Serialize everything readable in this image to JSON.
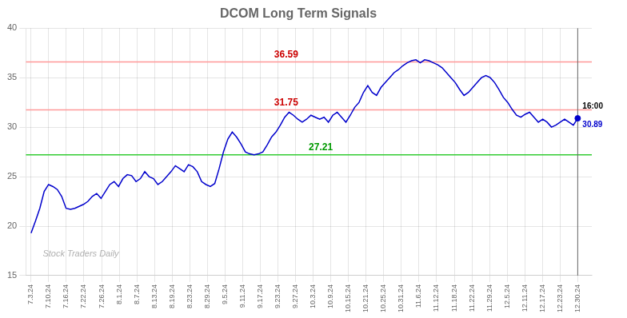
{
  "chart_data": {
    "type": "line",
    "title": "DCOM Long Term Signals",
    "color": "#0000cc",
    "x": [
      0,
      0.248,
      0.496,
      0.744,
      0.992,
      1.24,
      1.488,
      1.736,
      1.984,
      2.232,
      2.48,
      2.728,
      2.976,
      3.224,
      3.472,
      3.72,
      3.968,
      4.216,
      4.464,
      4.712,
      4.96,
      5.208,
      5.456,
      5.704,
      5.952,
      6.2,
      6.448,
      6.696,
      6.944,
      7.192,
      7.44,
      7.688,
      7.936,
      8.184,
      8.432,
      8.68,
      8.928,
      9.176,
      9.424,
      9.672,
      9.92,
      10.168,
      10.416,
      10.664,
      10.912,
      11.16,
      11.408,
      11.656,
      11.904,
      12.152,
      12.4,
      12.648,
      12.896,
      13.144,
      13.392,
      13.64,
      13.888,
      14.136,
      14.384,
      14.632,
      14.88,
      15.128,
      15.376,
      15.624,
      15.872,
      16.12,
      16.368,
      16.616,
      16.864,
      17.112,
      17.36,
      17.608,
      17.856,
      18.104,
      18.352,
      18.6,
      18.848,
      19.096,
      19.344,
      19.592,
      19.84,
      20.088,
      20.336,
      20.584,
      20.832,
      21.08,
      21.328,
      21.576,
      21.824,
      22.072,
      22.32,
      22.568,
      22.816,
      23.064,
      23.312,
      23.56,
      23.808,
      24.056,
      24.304,
      24.552,
      24.8,
      25.048,
      25.296,
      25.544,
      25.792,
      26.04,
      26.288,
      26.536,
      26.784,
      27.032,
      27.28,
      27.528,
      27.776,
      28.024,
      28.272,
      28.52,
      28.768,
      29.016,
      29.264,
      29.512,
      29.76,
      30.008,
      30.256,
      30.504,
      30.752,
      31
    ],
    "values": [
      19.3,
      20.5,
      21.8,
      23.5,
      24.2,
      24.0,
      23.7,
      23.0,
      21.8,
      21.7,
      21.8,
      22.0,
      22.2,
      22.5,
      23.0,
      23.3,
      22.8,
      23.5,
      24.2,
      24.5,
      24.0,
      24.8,
      25.2,
      25.1,
      24.5,
      24.8,
      25.5,
      25.0,
      24.8,
      24.2,
      24.5,
      25.0,
      25.5,
      26.1,
      25.8,
      25.5,
      26.2,
      26.0,
      25.5,
      24.5,
      24.2,
      24.0,
      24.3,
      25.8,
      27.5,
      28.8,
      29.5,
      29.0,
      28.3,
      27.5,
      27.3,
      27.2,
      27.3,
      27.5,
      28.2,
      29.0,
      29.5,
      30.2,
      31.0,
      31.5,
      31.2,
      30.8,
      30.5,
      30.8,
      31.2,
      31.0,
      30.8,
      31.0,
      30.5,
      31.2,
      31.5,
      31.0,
      30.5,
      31.2,
      32.0,
      32.5,
      33.5,
      34.2,
      33.5,
      33.2,
      34.0,
      34.5,
      35.0,
      35.5,
      35.8,
      36.2,
      36.5,
      36.7,
      36.8,
      36.5,
      36.8,
      36.7,
      36.5,
      36.3,
      36.0,
      35.5,
      35.0,
      34.5,
      33.8,
      33.2,
      33.5,
      34.0,
      34.5,
      35.0,
      35.2,
      35.0,
      34.5,
      33.8,
      33.0,
      32.5,
      31.8,
      31.2,
      31.0,
      31.3,
      31.5,
      31.0,
      30.5,
      30.8,
      30.5,
      30.0,
      30.2,
      30.5,
      30.8,
      30.5,
      30.2,
      30.89
    ],
    "xlim": [
      -0.3,
      31.8
    ],
    "xticks": [
      {
        "value": 0,
        "label": "7.3.24"
      },
      {
        "value": 1,
        "label": "7.10.24"
      },
      {
        "value": 2,
        "label": "7.16.24"
      },
      {
        "value": 3,
        "label": "7.22.24"
      },
      {
        "value": 4,
        "label": "7.26.24"
      },
      {
        "value": 5,
        "label": "8.1.24"
      },
      {
        "value": 6,
        "label": "8.7.24"
      },
      {
        "value": 7,
        "label": "8.13.24"
      },
      {
        "value": 8,
        "label": "8.19.24"
      },
      {
        "value": 9,
        "label": "8.23.24"
      },
      {
        "value": 10,
        "label": "8.29.24"
      },
      {
        "value": 11,
        "label": "9.5.24"
      },
      {
        "value": 12,
        "label": "9.11.24"
      },
      {
        "value": 13,
        "label": "9.17.24"
      },
      {
        "value": 14,
        "label": "9.23.24"
      },
      {
        "value": 15,
        "label": "9.27.24"
      },
      {
        "value": 16,
        "label": "10.3.24"
      },
      {
        "value": 17,
        "label": "10.9.24"
      },
      {
        "value": 18,
        "label": "10.15.24"
      },
      {
        "value": 19,
        "label": "10.21.24"
      },
      {
        "value": 20,
        "label": "10.25.24"
      },
      {
        "value": 21,
        "label": "10.31.24"
      },
      {
        "value": 22,
        "label": "11.6.24"
      },
      {
        "value": 23,
        "label": "11.12.24"
      },
      {
        "value": 24,
        "label": "11.18.24"
      },
      {
        "value": 25,
        "label": "11.22.24"
      },
      {
        "value": 26,
        "label": "11.29.24"
      },
      {
        "value": 27,
        "label": "12.5.24"
      },
      {
        "value": 28,
        "label": "12.11.24"
      },
      {
        "value": 29,
        "label": "12.17.24"
      },
      {
        "value": 30,
        "label": "12.23.24"
      },
      {
        "value": 31,
        "label": "12.30.24"
      }
    ],
    "ylim": [
      15,
      40
    ],
    "yticks": [
      15,
      20,
      25,
      30,
      35,
      40
    ],
    "grid": true,
    "hlines": [
      {
        "value": 27.21,
        "label": "27.21",
        "color": "#33cc33",
        "label_color": "#009900"
      },
      {
        "value": 31.75,
        "label": "31.75",
        "color": "#ff9999",
        "label_color": "#cc0000"
      },
      {
        "value": 36.59,
        "label": "36.59",
        "color": "#ff9999",
        "label_color": "#cc0000"
      }
    ],
    "end_marker": {
      "x": 31,
      "value": 30.89,
      "label": "30.89",
      "time_label": "16:00",
      "color": "#0000cc",
      "line_color": "#666666"
    },
    "watermark": "Stock Traders Daily",
    "watermark_color": "#b0b0b0"
  }
}
